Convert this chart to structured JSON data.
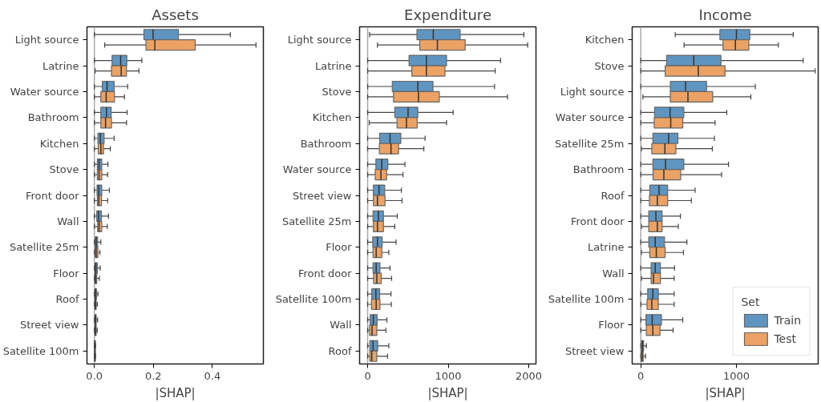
{
  "chart_data": [
    {
      "type": "box",
      "orientation": "horizontal",
      "title": "Assets",
      "xlabel": "|SHAP|",
      "xlim": [
        -0.025,
        0.573
      ],
      "xticks": [
        {
          "value": 0,
          "label": "0.0"
        },
        {
          "value": 0.2,
          "label": "0.2"
        },
        {
          "value": 0.4,
          "label": "0.4"
        }
      ],
      "grid": false,
      "legend": false,
      "ref_lines": [
        {
          "axis": "x",
          "value": 0,
          "color": "#aaaaaa"
        }
      ],
      "categories": [
        "Light source",
        "Latrine",
        "Water source",
        "Bathroom",
        "Kitchen",
        "Stove",
        "Front door",
        "Wall",
        "Satellite 25m",
        "Floor",
        "Roof",
        "Street view",
        "Satellite 100m"
      ],
      "series": [
        {
          "color": "#5f95c0",
          "boxes": [
            {
              "low": 0,
              "q1": 0.168,
              "median": 0.199,
              "q3": 0.285,
              "high": 0.461
            },
            {
              "low": 0,
              "q1": 0.06,
              "median": 0.089,
              "q3": 0.11,
              "high": 0.161
            },
            {
              "low": 0,
              "q1": 0.027,
              "median": 0.043,
              "q3": 0.067,
              "high": 0.113
            },
            {
              "low": 0,
              "q1": 0.022,
              "median": 0.041,
              "q3": 0.057,
              "high": 0.111
            },
            {
              "low": 0,
              "q1": 0.012,
              "median": 0.02,
              "q3": 0.033,
              "high": 0.067
            },
            {
              "low": 0,
              "q1": 0.01,
              "median": 0.016,
              "q3": 0.025,
              "high": 0.046
            },
            {
              "low": 0,
              "q1": 0.009,
              "median": 0.015,
              "q3": 0.025,
              "high": 0.051
            },
            {
              "low": 0,
              "q1": 0.008,
              "median": 0.014,
              "q3": 0.024,
              "high": 0.048
            },
            {
              "low": 0,
              "q1": 0.003,
              "median": 0.006,
              "q3": 0.011,
              "high": 0.022
            },
            {
              "low": 0,
              "q1": 0.002,
              "median": 0.005,
              "q3": 0.01,
              "high": 0.02
            },
            {
              "low": 0,
              "q1": 0.002,
              "median": 0.004,
              "q3": 0.007,
              "high": 0.012
            },
            {
              "low": 0,
              "q1": 0.002,
              "median": 0.004,
              "q3": 0.006,
              "high": 0.011
            },
            {
              "low": 0,
              "q1": 0.001,
              "median": 0.002,
              "q3": 0.003,
              "high": 0.004
            }
          ]
        },
        {
          "color": "#eba264",
          "boxes": [
            {
              "low": 0.035,
              "q1": 0.175,
              "median": 0.205,
              "q3": 0.342,
              "high": 0.548
            },
            {
              "low": 0.003,
              "q1": 0.058,
              "median": 0.091,
              "q3": 0.109,
              "high": 0.151
            },
            {
              "low": 0,
              "q1": 0.022,
              "median": 0.04,
              "q3": 0.068,
              "high": 0.102
            },
            {
              "low": 0,
              "q1": 0.022,
              "median": 0.038,
              "q3": 0.058,
              "high": 0.109
            },
            {
              "low": 0,
              "q1": 0.013,
              "median": 0.022,
              "q3": 0.031,
              "high": 0.054
            },
            {
              "low": 0,
              "q1": 0.01,
              "median": 0.016,
              "q3": 0.025,
              "high": 0.045
            },
            {
              "low": 0,
              "q1": 0.01,
              "median": 0.015,
              "q3": 0.024,
              "high": 0.045
            },
            {
              "low": 0,
              "q1": 0.011,
              "median": 0.016,
              "q3": 0.025,
              "high": 0.044
            },
            {
              "low": 0,
              "q1": 0.003,
              "median": 0.006,
              "q3": 0.012,
              "high": 0.019
            },
            {
              "low": 0,
              "q1": 0.002,
              "median": 0.004,
              "q3": 0.008,
              "high": 0.017
            },
            {
              "low": 0,
              "q1": 0.002,
              "median": 0.004,
              "q3": 0.006,
              "high": 0.01
            },
            {
              "low": 0,
              "q1": 0.002,
              "median": 0.004,
              "q3": 0.006,
              "high": 0.01
            },
            {
              "low": 0,
              "q1": 0.001,
              "median": 0.002,
              "q3": 0.003,
              "high": 0.004
            }
          ]
        }
      ]
    },
    {
      "type": "box",
      "orientation": "horizontal",
      "title": "Expenditure",
      "xlabel": "|SHAP|",
      "xlim": [
        -100,
        2090
      ],
      "xticks": [
        0,
        1000,
        2000
      ],
      "grid": false,
      "legend": false,
      "ref_lines": [
        {
          "axis": "x",
          "value": 0,
          "color": "#aaaaaa"
        }
      ],
      "categories": [
        "Light source",
        "Latrine",
        "Stove",
        "Kitchen",
        "Bathroom",
        "Water source",
        "Street view",
        "Satellite 25m",
        "Floor",
        "Front door",
        "Satellite 100m",
        "Wall",
        "Roof"
      ],
      "series": [
        {
          "color": "#5f95c0",
          "boxes": [
            {
              "low": 24,
              "q1": 612,
              "median": 815,
              "q3": 1149,
              "high": 1940
            },
            {
              "low": 0,
              "q1": 514,
              "median": 729,
              "q3": 980,
              "high": 1650
            },
            {
              "low": 0,
              "q1": 306,
              "median": 623,
              "q3": 811,
              "high": 1576
            },
            {
              "low": 0,
              "q1": 337,
              "median": 502,
              "q3": 623,
              "high": 1062
            },
            {
              "low": 0,
              "q1": 149,
              "median": 278,
              "q3": 412,
              "high": 713
            },
            {
              "low": 0,
              "q1": 102,
              "median": 176,
              "q3": 251,
              "high": 463
            },
            {
              "low": 0,
              "q1": 71,
              "median": 141,
              "q3": 212,
              "high": 419
            },
            {
              "low": 0,
              "q1": 67,
              "median": 133,
              "q3": 196,
              "high": 368
            },
            {
              "low": 0,
              "q1": 63,
              "median": 122,
              "q3": 180,
              "high": 353
            },
            {
              "low": 0,
              "q1": 67,
              "median": 106,
              "q3": 153,
              "high": 278
            },
            {
              "low": 0,
              "q1": 51,
              "median": 102,
              "q3": 149,
              "high": 290
            },
            {
              "low": 0,
              "q1": 31,
              "median": 71,
              "q3": 118,
              "high": 239
            },
            {
              "low": 0,
              "q1": 27,
              "median": 67,
              "q3": 125,
              "high": 263
            }
          ]
        },
        {
          "color": "#eba264",
          "boxes": [
            {
              "low": 122,
              "q1": 647,
              "median": 866,
              "q3": 1211,
              "high": 1987
            },
            {
              "low": 0,
              "q1": 549,
              "median": 729,
              "q3": 960,
              "high": 1584
            },
            {
              "low": 0,
              "q1": 321,
              "median": 631,
              "q3": 890,
              "high": 1737
            },
            {
              "low": 20,
              "q1": 365,
              "median": 482,
              "q3": 615,
              "high": 980
            },
            {
              "low": 0,
              "q1": 145,
              "median": 290,
              "q3": 384,
              "high": 698
            },
            {
              "low": 0,
              "q1": 94,
              "median": 165,
              "q3": 235,
              "high": 439
            },
            {
              "low": 0,
              "q1": 71,
              "median": 122,
              "q3": 216,
              "high": 427
            },
            {
              "low": 0,
              "q1": 71,
              "median": 122,
              "q3": 196,
              "high": 337
            },
            {
              "low": 0,
              "q1": 67,
              "median": 106,
              "q3": 176,
              "high": 263
            },
            {
              "low": 0,
              "q1": 74,
              "median": 114,
              "q3": 169,
              "high": 298
            },
            {
              "low": 0,
              "q1": 47,
              "median": 106,
              "q3": 153,
              "high": 294
            },
            {
              "low": 0,
              "q1": 24,
              "median": 55,
              "q3": 114,
              "high": 227
            },
            {
              "low": 0,
              "q1": 27,
              "median": 51,
              "q3": 114,
              "high": 247
            }
          ]
        }
      ]
    },
    {
      "type": "box",
      "orientation": "horizontal",
      "title": "Income",
      "xlabel": "|SHAP|",
      "xlim": [
        -90,
        1855
      ],
      "xticks": [
        0,
        1000
      ],
      "grid": false,
      "legend": "bottom right",
      "legend_title": "Set",
      "ref_lines": [
        {
          "axis": "x",
          "value": 0,
          "color": "#aaaaaa"
        }
      ],
      "categories": [
        "Kitchen",
        "Stove",
        "Light source",
        "Water source",
        "Satellite 25m",
        "Bathroom",
        "Roof",
        "Front door",
        "Latrine",
        "Wall",
        "Satellite 100m",
        "Floor",
        "Street view"
      ],
      "series": [
        {
          "name": "Train",
          "color": "#5f95c0",
          "boxes": [
            {
              "low": 360,
              "q1": 827,
              "median": 1000,
              "q3": 1140,
              "high": 1594
            },
            {
              "low": 0,
              "q1": 270,
              "median": 554,
              "q3": 838,
              "high": 1698
            },
            {
              "low": 0,
              "q1": 309,
              "median": 468,
              "q3": 687,
              "high": 1198
            },
            {
              "low": 0,
              "q1": 144,
              "median": 306,
              "q3": 450,
              "high": 899
            },
            {
              "low": 0,
              "q1": 126,
              "median": 291,
              "q3": 388,
              "high": 770
            },
            {
              "low": 0,
              "q1": 126,
              "median": 259,
              "q3": 450,
              "high": 917
            },
            {
              "low": 0,
              "q1": 94,
              "median": 191,
              "q3": 281,
              "high": 568
            },
            {
              "low": 0,
              "q1": 83,
              "median": 158,
              "q3": 223,
              "high": 414
            },
            {
              "low": 0,
              "q1": 83,
              "median": 151,
              "q3": 248,
              "high": 482
            },
            {
              "low": 0,
              "q1": 108,
              "median": 151,
              "q3": 205,
              "high": 353
            },
            {
              "low": 0,
              "q1": 72,
              "median": 126,
              "q3": 183,
              "high": 349
            },
            {
              "low": 0,
              "q1": 54,
              "median": 119,
              "q3": 216,
              "high": 439
            },
            {
              "low": 0,
              "q1": 7,
              "median": 18,
              "q3": 29,
              "high": 58
            }
          ]
        },
        {
          "name": "Test",
          "color": "#eba264",
          "boxes": [
            {
              "low": 453,
              "q1": 860,
              "median": 989,
              "q3": 1129,
              "high": 1439
            },
            {
              "low": 0,
              "q1": 255,
              "median": 601,
              "q3": 881,
              "high": 1824
            },
            {
              "low": 22,
              "q1": 309,
              "median": 493,
              "q3": 752,
              "high": 1151
            },
            {
              "low": 0,
              "q1": 140,
              "median": 313,
              "q3": 439,
              "high": 777
            },
            {
              "low": 7,
              "q1": 115,
              "median": 252,
              "q3": 367,
              "high": 748
            },
            {
              "low": 0,
              "q1": 129,
              "median": 241,
              "q3": 417,
              "high": 845
            },
            {
              "low": 0,
              "q1": 90,
              "median": 173,
              "q3": 281,
              "high": 529
            },
            {
              "low": 7,
              "q1": 83,
              "median": 173,
              "q3": 223,
              "high": 392
            },
            {
              "low": 7,
              "q1": 94,
              "median": 162,
              "q3": 255,
              "high": 446
            },
            {
              "low": 7,
              "q1": 108,
              "median": 133,
              "q3": 205,
              "high": 349
            },
            {
              "low": 0,
              "q1": 65,
              "median": 115,
              "q3": 183,
              "high": 349
            },
            {
              "low": 0,
              "q1": 58,
              "median": 126,
              "q3": 201,
              "high": 338
            },
            {
              "low": 0,
              "q1": 4,
              "median": 14,
              "q3": 25,
              "high": 50
            }
          ]
        }
      ]
    }
  ]
}
